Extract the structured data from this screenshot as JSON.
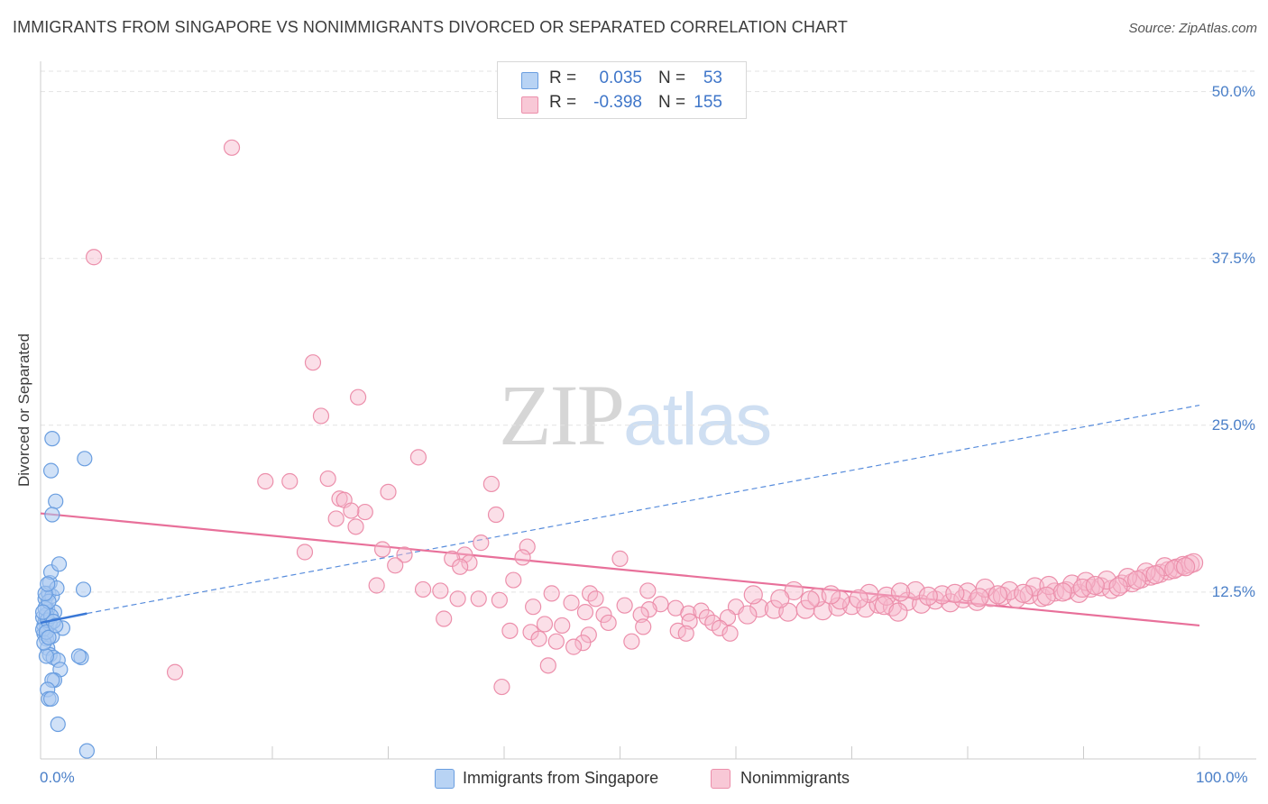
{
  "title": "IMMIGRANTS FROM SINGAPORE VS NONIMMIGRANTS DIVORCED OR SEPARATED CORRELATION CHART",
  "source": "Source: ZipAtlas.com",
  "watermark": {
    "part1": "ZIP",
    "part2": "atlas"
  },
  "legend": {
    "series": [
      {
        "r_label": "R =",
        "r_value": "0.035",
        "n_label": "N =",
        "n_value": "53"
      },
      {
        "r_label": "R =",
        "r_value": "-0.398",
        "n_label": "N =",
        "n_value": "155"
      }
    ]
  },
  "bottom_legend": [
    "Immigrants from Singapore",
    "Nonimmigrants"
  ],
  "colors": {
    "blue_fill": "#a9c8f0",
    "blue_stroke": "#6a9ee0",
    "blue_line": "#3a78d6",
    "pink_fill": "#f6b9cb",
    "pink_stroke": "#ec8fab",
    "pink_line": "#e8709a",
    "grid": "#e3e3e3",
    "tick_label": "#4a7fc8"
  },
  "chart_data": {
    "type": "scatter",
    "title": "IMMIGRANTS FROM SINGAPORE VS NONIMMIGRANTS DIVORCED OR SEPARATED CORRELATION CHART",
    "xlabel": "",
    "ylabel": "Divorced or Separated",
    "xlim": [
      0,
      100
    ],
    "ylim": [
      0,
      52
    ],
    "x_tick_labels": [
      "0.0%",
      "100.0%"
    ],
    "y_ticks": [
      12.5,
      25.0,
      37.5,
      50.0
    ],
    "y_tick_labels": [
      "12.5%",
      "25.0%",
      "37.5%",
      "50.0%"
    ],
    "grid": "dashed horizontal",
    "legend_position": "top-center",
    "series": [
      {
        "name": "Immigrants from Singapore",
        "r": 0.035,
        "n": 53,
        "trend_solid": [
          [
            0,
            10.2
          ],
          [
            4,
            10.9
          ]
        ],
        "trend_dashed": [
          [
            4,
            10.9
          ],
          [
            100,
            26.5
          ]
        ],
        "points": [
          [
            0.3,
            9.4
          ],
          [
            0.4,
            10.3
          ],
          [
            0.5,
            9.8
          ],
          [
            0.6,
            11.2
          ],
          [
            0.4,
            12.0
          ],
          [
            0.7,
            12.4
          ],
          [
            0.8,
            13.2
          ],
          [
            0.9,
            14.0
          ],
          [
            1.0,
            12.2
          ],
          [
            1.2,
            11.0
          ],
          [
            1.4,
            12.8
          ],
          [
            1.6,
            14.6
          ],
          [
            1.0,
            24.0
          ],
          [
            0.9,
            21.6
          ],
          [
            1.3,
            19.3
          ],
          [
            1.0,
            18.3
          ],
          [
            3.8,
            22.5
          ],
          [
            3.7,
            12.7
          ],
          [
            0.5,
            9.0
          ],
          [
            0.6,
            8.3
          ],
          [
            0.8,
            7.8
          ],
          [
            1.1,
            7.6
          ],
          [
            1.5,
            7.4
          ],
          [
            0.5,
            7.7
          ],
          [
            1.7,
            6.7
          ],
          [
            1.2,
            5.9
          ],
          [
            1.0,
            5.9
          ],
          [
            0.6,
            5.2
          ],
          [
            0.7,
            4.5
          ],
          [
            0.9,
            4.5
          ],
          [
            1.5,
            2.6
          ],
          [
            4.0,
            0.6
          ],
          [
            3.5,
            7.6
          ],
          [
            3.3,
            7.7
          ],
          [
            1.9,
            9.8
          ],
          [
            0.3,
            10.0
          ],
          [
            0.2,
            10.6
          ],
          [
            0.5,
            10.8
          ],
          [
            0.8,
            10.1
          ],
          [
            1.0,
            9.2
          ],
          [
            0.4,
            11.3
          ],
          [
            0.7,
            11.8
          ],
          [
            0.2,
            9.7
          ],
          [
            0.6,
            10.4
          ],
          [
            0.9,
            10.7
          ],
          [
            1.1,
            10.3
          ],
          [
            0.3,
            8.7
          ],
          [
            0.5,
            9.5
          ],
          [
            0.7,
            9.1
          ],
          [
            1.3,
            10.0
          ],
          [
            0.2,
            11.0
          ],
          [
            0.4,
            12.4
          ],
          [
            0.6,
            13.1
          ]
        ]
      },
      {
        "name": "Nonimmigrants",
        "r": -0.398,
        "n": 155,
        "trend": [
          [
            0,
            18.4
          ],
          [
            100,
            10.0
          ]
        ],
        "points": [
          [
            16.5,
            45.8
          ],
          [
            4.6,
            37.6
          ],
          [
            23.5,
            29.7
          ],
          [
            27.4,
            27.1
          ],
          [
            24.2,
            25.7
          ],
          [
            32.6,
            22.6
          ],
          [
            19.4,
            20.8
          ],
          [
            21.5,
            20.8
          ],
          [
            24.8,
            21.0
          ],
          [
            38.9,
            20.6
          ],
          [
            30.0,
            20.0
          ],
          [
            25.8,
            19.5
          ],
          [
            26.2,
            19.4
          ],
          [
            28.0,
            18.5
          ],
          [
            26.8,
            18.6
          ],
          [
            39.3,
            18.3
          ],
          [
            25.5,
            18.0
          ],
          [
            27.2,
            17.4
          ],
          [
            38.0,
            16.2
          ],
          [
            29.5,
            15.7
          ],
          [
            42.0,
            15.9
          ],
          [
            22.8,
            15.5
          ],
          [
            31.4,
            15.3
          ],
          [
            36.6,
            15.3
          ],
          [
            41.6,
            15.1
          ],
          [
            35.5,
            15.0
          ],
          [
            50.0,
            15.0
          ],
          [
            37.0,
            14.7
          ],
          [
            30.6,
            14.5
          ],
          [
            36.2,
            14.4
          ],
          [
            40.8,
            13.4
          ],
          [
            29.0,
            13.0
          ],
          [
            33.0,
            12.7
          ],
          [
            34.5,
            12.6
          ],
          [
            44.1,
            12.4
          ],
          [
            52.4,
            12.6
          ],
          [
            47.4,
            12.4
          ],
          [
            47.9,
            12.0
          ],
          [
            36.0,
            12.0
          ],
          [
            37.8,
            12.0
          ],
          [
            45.8,
            11.7
          ],
          [
            39.6,
            11.9
          ],
          [
            50.4,
            11.5
          ],
          [
            53.5,
            11.6
          ],
          [
            52.5,
            11.2
          ],
          [
            54.8,
            11.3
          ],
          [
            42.5,
            11.4
          ],
          [
            47.0,
            11.0
          ],
          [
            48.6,
            10.8
          ],
          [
            51.8,
            10.8
          ],
          [
            55.9,
            10.9
          ],
          [
            57.0,
            11.1
          ],
          [
            60.0,
            11.4
          ],
          [
            62.0,
            11.3
          ],
          [
            63.3,
            11.2
          ],
          [
            64.5,
            11.0
          ],
          [
            57.5,
            10.6
          ],
          [
            59.3,
            10.6
          ],
          [
            61.0,
            10.8
          ],
          [
            56.0,
            10.3
          ],
          [
            58.0,
            10.2
          ],
          [
            34.8,
            10.5
          ],
          [
            49.0,
            10.2
          ],
          [
            45.0,
            10.0
          ],
          [
            43.5,
            10.1
          ],
          [
            52.0,
            9.9
          ],
          [
            58.6,
            9.8
          ],
          [
            55.0,
            9.6
          ],
          [
            40.5,
            9.6
          ],
          [
            42.3,
            9.5
          ],
          [
            47.3,
            9.3
          ],
          [
            59.5,
            9.4
          ],
          [
            43.0,
            9.0
          ],
          [
            44.5,
            8.8
          ],
          [
            51.0,
            8.8
          ],
          [
            46.8,
            8.7
          ],
          [
            55.7,
            9.4
          ],
          [
            46.0,
            8.4
          ],
          [
            43.8,
            7.0
          ],
          [
            11.6,
            6.5
          ],
          [
            39.8,
            5.4
          ],
          [
            66.0,
            11.2
          ],
          [
            67.5,
            11.1
          ],
          [
            68.8,
            11.4
          ],
          [
            70.0,
            11.5
          ],
          [
            71.2,
            11.3
          ],
          [
            72.3,
            11.6
          ],
          [
            73.5,
            11.4
          ],
          [
            74.8,
            11.8
          ],
          [
            76.0,
            11.6
          ],
          [
            77.2,
            11.9
          ],
          [
            78.5,
            11.7
          ],
          [
            79.6,
            12.0
          ],
          [
            80.8,
            11.8
          ],
          [
            82.0,
            12.1
          ],
          [
            83.0,
            12.2
          ],
          [
            84.2,
            12.0
          ],
          [
            85.3,
            12.3
          ],
          [
            86.4,
            12.1
          ],
          [
            87.5,
            12.5
          ],
          [
            88.5,
            12.6
          ],
          [
            89.6,
            12.4
          ],
          [
            90.6,
            12.8
          ],
          [
            91.5,
            12.9
          ],
          [
            92.4,
            12.7
          ],
          [
            93.3,
            13.1
          ],
          [
            94.2,
            13.2
          ],
          [
            95.0,
            13.5
          ],
          [
            95.8,
            13.7
          ],
          [
            96.6,
            13.9
          ],
          [
            97.3,
            14.1
          ],
          [
            98.0,
            14.3
          ],
          [
            98.6,
            14.5
          ],
          [
            99.2,
            14.6
          ],
          [
            65.0,
            12.6
          ],
          [
            67.0,
            12.1
          ],
          [
            69.0,
            11.9
          ],
          [
            71.5,
            12.4
          ],
          [
            73.0,
            12.2
          ],
          [
            75.5,
            12.6
          ],
          [
            77.8,
            12.3
          ],
          [
            80.0,
            12.5
          ],
          [
            81.5,
            12.8
          ],
          [
            83.6,
            12.6
          ],
          [
            85.8,
            12.9
          ],
          [
            87.0,
            13.0
          ],
          [
            89.0,
            13.1
          ],
          [
            90.2,
            13.3
          ],
          [
            92.0,
            13.4
          ],
          [
            93.8,
            13.6
          ],
          [
            95.4,
            14.0
          ],
          [
            97.0,
            14.4
          ],
          [
            99.5,
            14.7
          ],
          [
            61.5,
            12.3
          ],
          [
            63.8,
            12.0
          ],
          [
            66.4,
            11.9
          ],
          [
            68.2,
            12.3
          ],
          [
            70.6,
            12.0
          ],
          [
            72.8,
            11.5
          ],
          [
            74.2,
            12.5
          ],
          [
            76.6,
            12.2
          ],
          [
            78.9,
            12.4
          ],
          [
            81.0,
            12.1
          ],
          [
            82.6,
            12.3
          ],
          [
            84.8,
            12.4
          ],
          [
            86.8,
            12.2
          ],
          [
            88.2,
            12.5
          ],
          [
            89.9,
            12.8
          ],
          [
            91.0,
            13.0
          ],
          [
            93.0,
            12.9
          ],
          [
            94.6,
            13.4
          ],
          [
            96.2,
            13.8
          ],
          [
            97.8,
            14.2
          ],
          [
            98.8,
            14.4
          ],
          [
            74.0,
            11.0
          ]
        ]
      }
    ]
  }
}
